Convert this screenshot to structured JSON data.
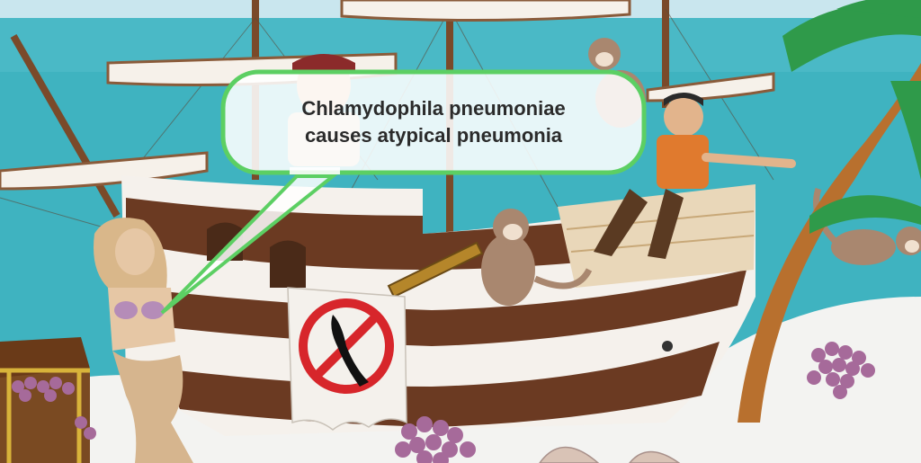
{
  "caption": {
    "line1": "Chlamydophila pneumoniae",
    "line2": "causes atypical pneumonia"
  },
  "colors": {
    "sea": "#3fb3c0",
    "sky": "#c9e6ee",
    "sand": "#f3f3f1",
    "hull_brown": "#6b3a22",
    "bubble_border": "#5ccf63",
    "bubble_fill": "#ffffff",
    "grapes": "#a66a9a",
    "palm_leaf": "#2f9a4a",
    "no_sign_red": "#d7262b"
  }
}
